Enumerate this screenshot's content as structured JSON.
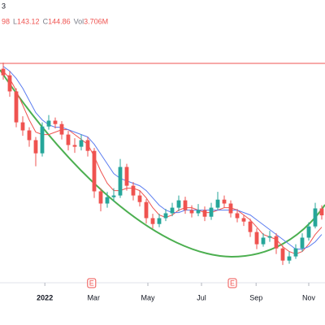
{
  "chart_data": {
    "type": "candlestick",
    "corner_text": "3",
    "header": [
      {
        "text": "98",
        "color": "#ef5350"
      },
      {
        "text": "L",
        "color": "#787b86"
      },
      {
        "text": "143.12",
        "color": "#ef5350"
      },
      {
        "text": "C",
        "color": "#787b86"
      },
      {
        "text": "144.86",
        "color": "#ef5350"
      },
      {
        "text": "Vol",
        "color": "#787b86"
      },
      {
        "text": "3.706M",
        "color": "#ef5350"
      }
    ],
    "ylim": [
      118.2,
      233.2
    ],
    "xlim": [
      -0.5,
      49.5
    ],
    "xticks": [
      {
        "value": 6.4,
        "label": "2022"
      },
      {
        "value": 13.9,
        "label": "Mar"
      },
      {
        "value": 22.25,
        "label": "May"
      },
      {
        "value": 30.5,
        "label": "Jul"
      },
      {
        "value": 38.9,
        "label": "Sep"
      },
      {
        "value": 47,
        "label": "Nov"
      }
    ],
    "events": [
      {
        "x": 13.6,
        "label": "E"
      },
      {
        "x": 35.25,
        "label": "E"
      }
    ],
    "hline": {
      "value": 207.2,
      "color": "#ef5350"
    },
    "up_color": "#26a69a",
    "down_color": "#ef5350",
    "open": [
      205.0,
      202.3,
      195.7,
      183.0,
      179.7,
      175.7,
      170.3,
      181.3,
      183.7,
      182.3,
      178.0,
      173.7,
      173.0,
      175.7,
      171.3,
      154.7,
      149.7,
      152.3,
      153.0,
      164.7,
      157.0,
      153.0,
      150.3,
      143.7,
      141.3,
      143.7,
      145.7,
      148.0,
      151.0,
      147.0,
      145.7,
      147.0,
      144.3,
      148.0,
      151.3,
      149.7,
      145.7,
      143.7,
      142.3,
      138.0,
      133.0,
      135.7,
      136.3,
      131.3,
      126.3,
      128.0,
      131.3,
      135.7,
      140.3,
      147.7
    ],
    "high": [
      207.5,
      204.0,
      197.0,
      185.5,
      181.0,
      177.0,
      183.0,
      186.0,
      185.0,
      183.5,
      179.5,
      176.5,
      178.0,
      177.0,
      172.5,
      156.0,
      154.5,
      156.0,
      168.0,
      166.0,
      158.5,
      155.0,
      151.5,
      145.5,
      145.5,
      147.5,
      150.0,
      153.0,
      152.5,
      149.0,
      149.5,
      148.5,
      150.0,
      154.5,
      153.0,
      151.0,
      147.5,
      145.0,
      143.5,
      139.5,
      137.5,
      138.5,
      137.5,
      132.5,
      130.0,
      133.0,
      137.5,
      142.0,
      150.0,
      149.0
    ],
    "low": [
      200.5,
      193.5,
      181.0,
      177.5,
      173.0,
      165.0,
      169.0,
      180.0,
      180.5,
      176.0,
      171.5,
      170.5,
      171.5,
      169.0,
      152.0,
      146.5,
      148.0,
      150.5,
      152.0,
      155.0,
      151.0,
      148.5,
      141.5,
      139.5,
      140.0,
      142.5,
      144.5,
      146.5,
      145.5,
      144.0,
      144.5,
      142.5,
      143.0,
      147.0,
      148.0,
      144.0,
      142.0,
      140.5,
      136.0,
      131.0,
      132.0,
      134.0,
      129.0,
      124.5,
      125.0,
      127.0,
      130.0,
      134.5,
      139.5,
      143.12
    ],
    "close": [
      202.3,
      195.7,
      183.0,
      179.7,
      175.7,
      170.3,
      181.3,
      183.7,
      182.3,
      178.0,
      173.7,
      173.0,
      175.7,
      171.3,
      154.7,
      149.7,
      152.3,
      153.0,
      164.7,
      157.0,
      153.0,
      150.3,
      143.7,
      141.3,
      143.7,
      145.7,
      148.0,
      151.0,
      147.0,
      145.7,
      147.0,
      144.3,
      148.0,
      151.3,
      149.7,
      145.7,
      143.7,
      142.3,
      138.0,
      133.0,
      135.7,
      136.3,
      131.3,
      126.3,
      128.0,
      131.3,
      135.7,
      140.3,
      147.7,
      144.86
    ],
    "series": [
      {
        "color": "#ef5350",
        "values": [
          204,
          201,
          196,
          190,
          184,
          179,
          178,
          178,
          179,
          180,
          180,
          178,
          176,
          174,
          169,
          163,
          158,
          155,
          155,
          156,
          156,
          155,
          152,
          148,
          145,
          144,
          145,
          147,
          148,
          148,
          147,
          146,
          146,
          147,
          148,
          148,
          147,
          145,
          143,
          140,
          137,
          136,
          135,
          132,
          130,
          129,
          130,
          133,
          137,
          140
        ]
      },
      {
        "color": "#5b7cf0",
        "values": [
          206,
          204,
          201,
          197,
          192,
          187,
          184,
          182,
          181,
          181,
          180,
          179,
          178,
          177,
          174,
          170,
          166,
          162,
          160,
          159,
          158,
          157,
          155,
          152,
          149,
          147,
          146,
          146,
          147,
          147,
          147,
          147,
          147,
          147,
          147,
          147,
          147,
          146,
          145,
          143,
          141,
          139,
          137,
          135,
          133,
          131,
          131,
          132,
          134,
          137
        ]
      }
    ]
  }
}
